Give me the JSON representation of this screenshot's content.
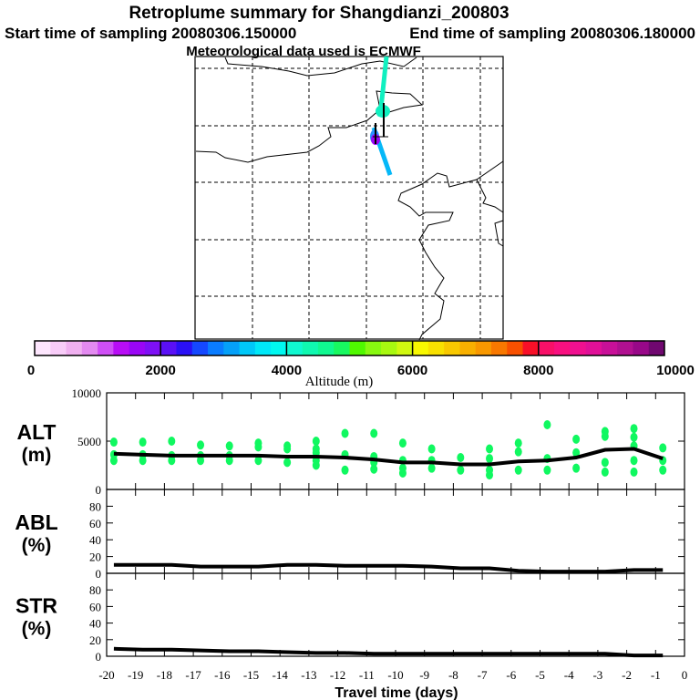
{
  "title": "Retroplume summary for Shangdianzi_200803",
  "subtitle_start": "Start time of sampling 20080306.150000",
  "subtitle_end": "End time of sampling 20080306.180000",
  "subtitle_met": "Meteorological data used is ECMWF",
  "colorbar": {
    "label": "Altitude (m)",
    "ticks": [
      "0",
      "2000",
      "4000",
      "6000",
      "8000",
      "10000"
    ],
    "colors": [
      "#fde6fd",
      "#f8ccf8",
      "#f0b0f0",
      "#e38af0",
      "#cf4ff5",
      "#b80df5",
      "#9a06f5",
      "#7e10f5",
      "#5a10f5",
      "#2a10f5",
      "#1548ff",
      "#0a7cff",
      "#05a0f8",
      "#00c8f8",
      "#00e8f8",
      "#00f8f0",
      "#10f8d0",
      "#10f8b0",
      "#10f890",
      "#18f860",
      "#50f800",
      "#88f810",
      "#a8f810",
      "#d0f810",
      "#f8f800",
      "#f8e000",
      "#f8c800",
      "#f8b000",
      "#f89800",
      "#f87800",
      "#f85000",
      "#f81028",
      "#f81068",
      "#f81080",
      "#f01090",
      "#e01098",
      "#c81098",
      "#b01090",
      "#980888",
      "#700870"
    ]
  },
  "chart_data": [
    {
      "type": "line",
      "panel": "ALT",
      "ylabel": "ALT",
      "yunit": "(m)",
      "ylim": [
        0,
        10000
      ],
      "yticks": [
        "0",
        "5000",
        "10000"
      ],
      "x": [
        -19.75,
        -18.75,
        -17.75,
        -16.75,
        -15.75,
        -14.75,
        -13.75,
        -12.75,
        -11.75,
        -10.75,
        -9.75,
        -8.75,
        -7.75,
        -6.75,
        -5.75,
        -4.75,
        -3.75,
        -2.75,
        -1.75,
        -0.75
      ],
      "values": [
        3700,
        3600,
        3500,
        3500,
        3500,
        3500,
        3400,
        3400,
        3300,
        3100,
        2800,
        2800,
        2600,
        2600,
        2900,
        3000,
        3300,
        4100,
        4200,
        3200
      ],
      "scatter_color": "#10f860",
      "scatter": [
        [
          4900,
          3600,
          3000
        ],
        [
          4900,
          3600,
          3000
        ],
        [
          5000,
          3500,
          3000
        ],
        [
          4600,
          3500,
          3000
        ],
        [
          4500,
          3500,
          3000
        ],
        [
          4800,
          4400,
          3000
        ],
        [
          4500,
          4200,
          2800
        ],
        [
          5000,
          4200,
          3800,
          3000,
          2500
        ],
        [
          5800,
          3600,
          2000
        ],
        [
          5800,
          3400,
          2800,
          2100
        ],
        [
          4800,
          3000,
          2200,
          1700
        ],
        [
          4200,
          3000,
          2200
        ],
        [
          3300,
          2000
        ],
        [
          4200,
          3200,
          2000,
          1500
        ],
        [
          4800,
          3900,
          2000
        ],
        [
          6700,
          3200,
          2000
        ],
        [
          5200,
          3800,
          2200
        ],
        [
          6000,
          5500,
          2800,
          1800
        ],
        [
          6300,
          5400,
          4500,
          3000,
          1800
        ],
        [
          4300,
          3000,
          2000
        ]
      ]
    },
    {
      "type": "line",
      "panel": "ABL",
      "ylabel": "ABL",
      "yunit": "(%)",
      "ylim": [
        0,
        100
      ],
      "yticks": [
        "0",
        "20",
        "40",
        "60",
        "80"
      ],
      "x": [
        -19.75,
        -18.75,
        -17.75,
        -16.75,
        -15.75,
        -14.75,
        -13.75,
        -12.75,
        -11.75,
        -10.75,
        -9.75,
        -8.75,
        -7.75,
        -6.75,
        -5.75,
        -4.75,
        -3.75,
        -2.75,
        -1.75,
        -0.75
      ],
      "values": [
        10,
        10,
        10,
        8,
        8,
        8,
        10,
        10,
        9,
        9,
        9,
        8,
        6,
        6,
        3,
        2,
        2,
        2,
        4,
        4
      ]
    },
    {
      "type": "line",
      "panel": "STR",
      "ylabel": "STR",
      "yunit": "(%)",
      "ylim": [
        0,
        100
      ],
      "yticks": [
        "0",
        "20",
        "40",
        "60",
        "80"
      ],
      "x": [
        -19.75,
        -18.75,
        -17.75,
        -16.75,
        -15.75,
        -14.75,
        -13.75,
        -12.75,
        -11.75,
        -10.75,
        -9.75,
        -8.75,
        -7.75,
        -6.75,
        -5.75,
        -4.75,
        -3.75,
        -2.75,
        -1.75,
        -0.75
      ],
      "values": [
        9,
        8,
        8,
        7,
        6,
        6,
        5,
        4,
        4,
        3,
        3,
        3,
        3,
        3,
        3,
        3,
        3,
        3,
        1,
        1
      ],
      "xlabel": "Travel time (days)",
      "xlim": [
        -20,
        0
      ],
      "xticks": [
        "-20",
        "-19",
        "-18",
        "-17",
        "-16",
        "-15",
        "-14",
        "-13",
        "-12",
        "-11",
        "-10",
        "-9",
        "-8",
        "-7",
        "-6",
        "-5",
        "-4",
        "-3",
        "-2",
        "-1",
        "0"
      ]
    }
  ]
}
